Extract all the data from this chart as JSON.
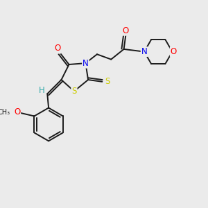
{
  "background_color": "#ebebeb",
  "bond_color": "#1a1a1a",
  "atom_colors": {
    "O": "#ff0000",
    "N": "#0000ee",
    "S": "#cccc00",
    "H": "#33aaaa",
    "C": "#1a1a1a"
  },
  "figsize": [
    3.0,
    3.0
  ],
  "dpi": 100,
  "lw": 1.4,
  "fontsize": 8.5
}
